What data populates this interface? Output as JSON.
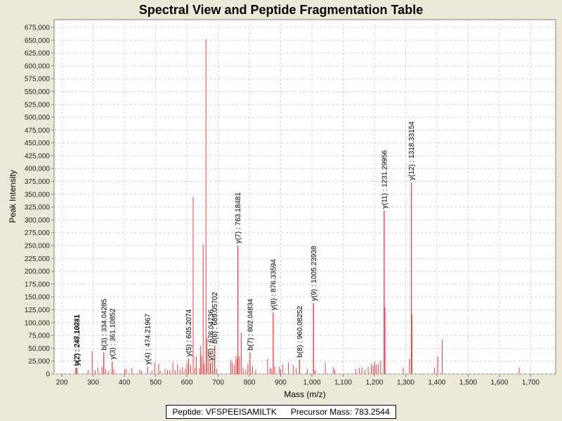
{
  "chart_data": {
    "type": "bar",
    "title": "Spectral View and Peptide Fragmentation Table",
    "xlabel": "Mass (m/z)",
    "ylabel": "Peak Intensity",
    "xlim": [
      175,
      1780
    ],
    "ylim": [
      0,
      690000
    ],
    "xticks": [
      200,
      300,
      400,
      500,
      600,
      700,
      800,
      900,
      1000,
      1100,
      1200,
      1300,
      1400,
      1500,
      1600,
      1700
    ],
    "yticks": [
      0,
      25000,
      50000,
      75000,
      100000,
      125000,
      150000,
      175000,
      200000,
      225000,
      250000,
      275000,
      300000,
      325000,
      350000,
      375000,
      400000,
      425000,
      450000,
      475000,
      500000,
      525000,
      550000,
      575000,
      600000,
      625000,
      650000,
      675000
    ],
    "grid": true,
    "peak_color": "#ff3b3b",
    "peaks": [
      {
        "mz": 244,
        "intensity": 12000
      },
      {
        "mz": 247,
        "intensity": 9000
      },
      {
        "mz": 284,
        "intensity": 8000
      },
      {
        "mz": 297,
        "intensity": 45000
      },
      {
        "mz": 306,
        "intensity": 7000
      },
      {
        "mz": 315,
        "intensity": 12000
      },
      {
        "mz": 328,
        "intensity": 14000
      },
      {
        "mz": 334,
        "intensity": 42000
      },
      {
        "mz": 340,
        "intensity": 10000
      },
      {
        "mz": 350,
        "intensity": 6000
      },
      {
        "mz": 361,
        "intensity": 24000
      },
      {
        "mz": 366,
        "intensity": 9000
      },
      {
        "mz": 401,
        "intensity": 9000
      },
      {
        "mz": 406,
        "intensity": 10000
      },
      {
        "mz": 424,
        "intensity": 12000
      },
      {
        "mz": 449,
        "intensity": 9000
      },
      {
        "mz": 455,
        "intensity": 6000
      },
      {
        "mz": 474,
        "intensity": 14000
      },
      {
        "mz": 488,
        "intensity": 7000
      },
      {
        "mz": 497,
        "intensity": 22000
      },
      {
        "mz": 510,
        "intensity": 20000
      },
      {
        "mz": 515,
        "intensity": 6000
      },
      {
        "mz": 530,
        "intensity": 10000
      },
      {
        "mz": 538,
        "intensity": 8000
      },
      {
        "mz": 545,
        "intensity": 7000
      },
      {
        "mz": 555,
        "intensity": 22000
      },
      {
        "mz": 562,
        "intensity": 8000
      },
      {
        "mz": 570,
        "intensity": 19000
      },
      {
        "mz": 578,
        "intensity": 9000
      },
      {
        "mz": 586,
        "intensity": 14000
      },
      {
        "mz": 595,
        "intensity": 10000
      },
      {
        "mz": 600,
        "intensity": 21000
      },
      {
        "mz": 605,
        "intensity": 30000
      },
      {
        "mz": 612,
        "intensity": 18000
      },
      {
        "mz": 620,
        "intensity": 345000
      },
      {
        "mz": 625,
        "intensity": 12000
      },
      {
        "mz": 630,
        "intensity": 35000
      },
      {
        "mz": 640,
        "intensity": 11000
      },
      {
        "mz": 644,
        "intensity": 55000
      },
      {
        "mz": 647,
        "intensity": 35000
      },
      {
        "mz": 652,
        "intensity": 252000
      },
      {
        "mz": 655,
        "intensity": 20000
      },
      {
        "mz": 661,
        "intensity": 652000
      },
      {
        "mz": 664,
        "intensity": 70000
      },
      {
        "mz": 670,
        "intensity": 48000
      },
      {
        "mz": 675,
        "intensity": 22000
      },
      {
        "mz": 682,
        "intensity": 30000
      },
      {
        "mz": 689,
        "intensity": 55000
      },
      {
        "mz": 695,
        "intensity": 10000
      },
      {
        "mz": 740,
        "intensity": 28000
      },
      {
        "mz": 745,
        "intensity": 22000
      },
      {
        "mz": 752,
        "intensity": 18000
      },
      {
        "mz": 757,
        "intensity": 35000
      },
      {
        "mz": 761,
        "intensity": 30000
      },
      {
        "mz": 763,
        "intensity": 250000
      },
      {
        "mz": 768,
        "intensity": 35000
      },
      {
        "mz": 774,
        "intensity": 80000
      },
      {
        "mz": 780,
        "intensity": 12000
      },
      {
        "mz": 788,
        "intensity": 8000
      },
      {
        "mz": 795,
        "intensity": 20000
      },
      {
        "mz": 802,
        "intensity": 42000
      },
      {
        "mz": 810,
        "intensity": 15000
      },
      {
        "mz": 820,
        "intensity": 9000
      },
      {
        "mz": 858,
        "intensity": 30000
      },
      {
        "mz": 866,
        "intensity": 12000
      },
      {
        "mz": 870,
        "intensity": 10000
      },
      {
        "mz": 876,
        "intensity": 120000
      },
      {
        "mz": 881,
        "intensity": 15000
      },
      {
        "mz": 895,
        "intensity": 14000
      },
      {
        "mz": 900,
        "intensity": 10000
      },
      {
        "mz": 907,
        "intensity": 18000
      },
      {
        "mz": 925,
        "intensity": 22000
      },
      {
        "mz": 940,
        "intensity": 18000
      },
      {
        "mz": 950,
        "intensity": 12000
      },
      {
        "mz": 960,
        "intensity": 28000
      },
      {
        "mz": 985,
        "intensity": 10000
      },
      {
        "mz": 1005,
        "intensity": 138000
      },
      {
        "mz": 1010,
        "intensity": 8000
      },
      {
        "mz": 1043,
        "intensity": 22000
      },
      {
        "mz": 1068,
        "intensity": 14000
      },
      {
        "mz": 1073,
        "intensity": 9000
      },
      {
        "mz": 1140,
        "intensity": 10000
      },
      {
        "mz": 1152,
        "intensity": 12000
      },
      {
        "mz": 1160,
        "intensity": 13000
      },
      {
        "mz": 1170,
        "intensity": 8000
      },
      {
        "mz": 1180,
        "intensity": 14000
      },
      {
        "mz": 1190,
        "intensity": 20000
      },
      {
        "mz": 1196,
        "intensity": 16000
      },
      {
        "mz": 1201,
        "intensity": 24000
      },
      {
        "mz": 1206,
        "intensity": 18000
      },
      {
        "mz": 1212,
        "intensity": 20000
      },
      {
        "mz": 1220,
        "intensity": 26000
      },
      {
        "mz": 1231,
        "intensity": 318000
      },
      {
        "mz": 1234,
        "intensity": 130000
      },
      {
        "mz": 1292,
        "intensity": 12000
      },
      {
        "mz": 1312,
        "intensity": 30000
      },
      {
        "mz": 1318,
        "intensity": 373000
      },
      {
        "mz": 1320,
        "intensity": 115000
      },
      {
        "mz": 1392,
        "intensity": 12000
      },
      {
        "mz": 1403,
        "intensity": 34000
      },
      {
        "mz": 1417,
        "intensity": 67000
      },
      {
        "mz": 1663,
        "intensity": 13000
      }
    ],
    "annotations": [
      {
        "label": "y(2) : 248.16031",
        "mz": 248.16,
        "intensity": 12000
      },
      {
        "label": "b(2) : 247.10241",
        "mz": 247.1,
        "intensity": 12000
      },
      {
        "label": "b(3) : 334.04285",
        "mz": 334.04,
        "intensity": 42000
      },
      {
        "label": "y(3) : 361.10852",
        "mz": 361.11,
        "intensity": 24000
      },
      {
        "label": "y(4) : 474.21967",
        "mz": 474.22,
        "intensity": 14000
      },
      {
        "label": "y(5) : 605.2074",
        "mz": 605.21,
        "intensity": 30000
      },
      {
        "label": "y(6) : 676.04736",
        "mz": 676.05,
        "intensity": 22000
      },
      {
        "label": "b(6) : 689.05702",
        "mz": 689.06,
        "intensity": 55000
      },
      {
        "label": "y(7) : 763.18481",
        "mz": 763.18,
        "intensity": 250000
      },
      {
        "label": "b(7) : 802.04834",
        "mz": 802.05,
        "intensity": 42000
      },
      {
        "label": "y(8) : 876.33594",
        "mz": 876.34,
        "intensity": 120000
      },
      {
        "label": "b(8) : 960.08252",
        "mz": 960.08,
        "intensity": 28000
      },
      {
        "label": "y(9) : 1005.23938",
        "mz": 1005.24,
        "intensity": 138000
      },
      {
        "label": "y(11) : 1231.29956",
        "mz": 1231.3,
        "intensity": 318000
      },
      {
        "label": "y(12) : 1318.33154",
        "mz": 1318.33,
        "intensity": 373000
      }
    ]
  },
  "footer": {
    "peptide": "Peptide: VFSPEEISAMILTK",
    "precursor": "Precursor Mass: 783.2544"
  }
}
